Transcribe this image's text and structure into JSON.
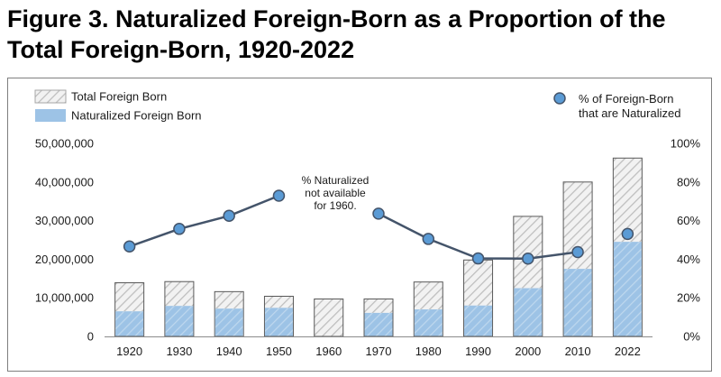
{
  "figure": {
    "title": "Figure 3. Naturalized Foreign-Born as a Proportion of the Total Foreign-Born, 1920-2022"
  },
  "chart_data": {
    "type": "bar",
    "categories": [
      "1920",
      "1930",
      "1940",
      "1950",
      "1960",
      "1970",
      "1980",
      "1990",
      "2000",
      "2010",
      "2022"
    ],
    "series": [
      {
        "name": "Total Foreign Born",
        "type": "bar",
        "axis": "left",
        "color": "#d9d9d9",
        "pattern": "diagonal-hatch",
        "values": [
          13900000,
          14200000,
          11600000,
          10400000,
          9700000,
          9700000,
          14100000,
          19800000,
          31100000,
          40000000,
          46200000
        ]
      },
      {
        "name": "Naturalized Foreign Born",
        "type": "bar",
        "axis": "left",
        "color": "#9dc3e6",
        "pattern": "diagonal-hatch",
        "values": [
          6500000,
          7900000,
          7200000,
          7400000,
          null,
          6100000,
          7000000,
          8000000,
          12500000,
          17500000,
          24500000
        ]
      },
      {
        "name": "% of Foreign-Born that are Naturalized",
        "legend_lines": [
          "% of Foreign-Born",
          "that are Naturalized"
        ],
        "type": "line",
        "axis": "right",
        "color": "#5b9bd5",
        "line_color": "#44546a",
        "values": [
          46.6,
          55.7,
          62.5,
          72.9,
          null,
          63.6,
          50.5,
          40.4,
          40.3,
          43.7,
          53.1
        ],
        "segments": [
          [
            0,
            3
          ],
          [
            5,
            9
          ]
        ]
      }
    ],
    "y_left": {
      "ylim": [
        0,
        50000000
      ],
      "ticks": [
        "0",
        "10,000,000",
        "20,000,000",
        "30,000,000",
        "40,000,000",
        "50,000,000"
      ]
    },
    "y_right": {
      "ylim": [
        0,
        100
      ],
      "ticks": [
        "0%",
        "20%",
        "40%",
        "60%",
        "80%",
        "100%"
      ]
    },
    "annotation": {
      "lines": [
        "% Naturalized",
        "not available",
        "for 1960."
      ]
    },
    "grid": false,
    "legend": {
      "bars_position": "top-left",
      "line_position": "top-right"
    }
  }
}
